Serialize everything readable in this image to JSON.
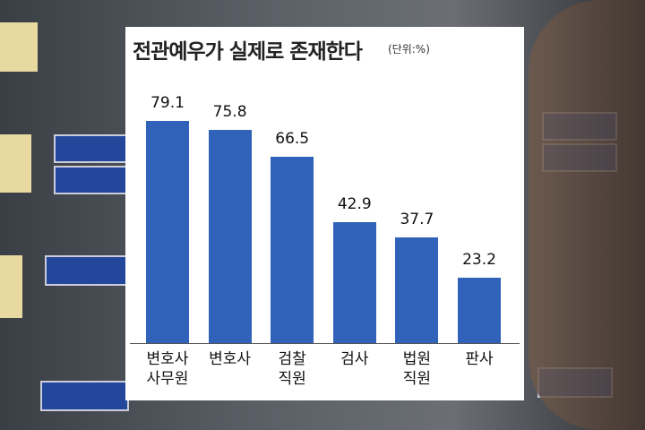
{
  "chart_data": {
    "type": "bar",
    "title": "전관예우가 실제로 존재한다",
    "subtitle": "(단위:%)",
    "categories": [
      "변호사\n사무원",
      "변호사",
      "검찰\n직원",
      "검사",
      "법원\n직원",
      "판사"
    ],
    "values": [
      79.1,
      75.8,
      66.5,
      42.9,
      37.7,
      23.2
    ],
    "color": "#2f62b8"
  }
}
